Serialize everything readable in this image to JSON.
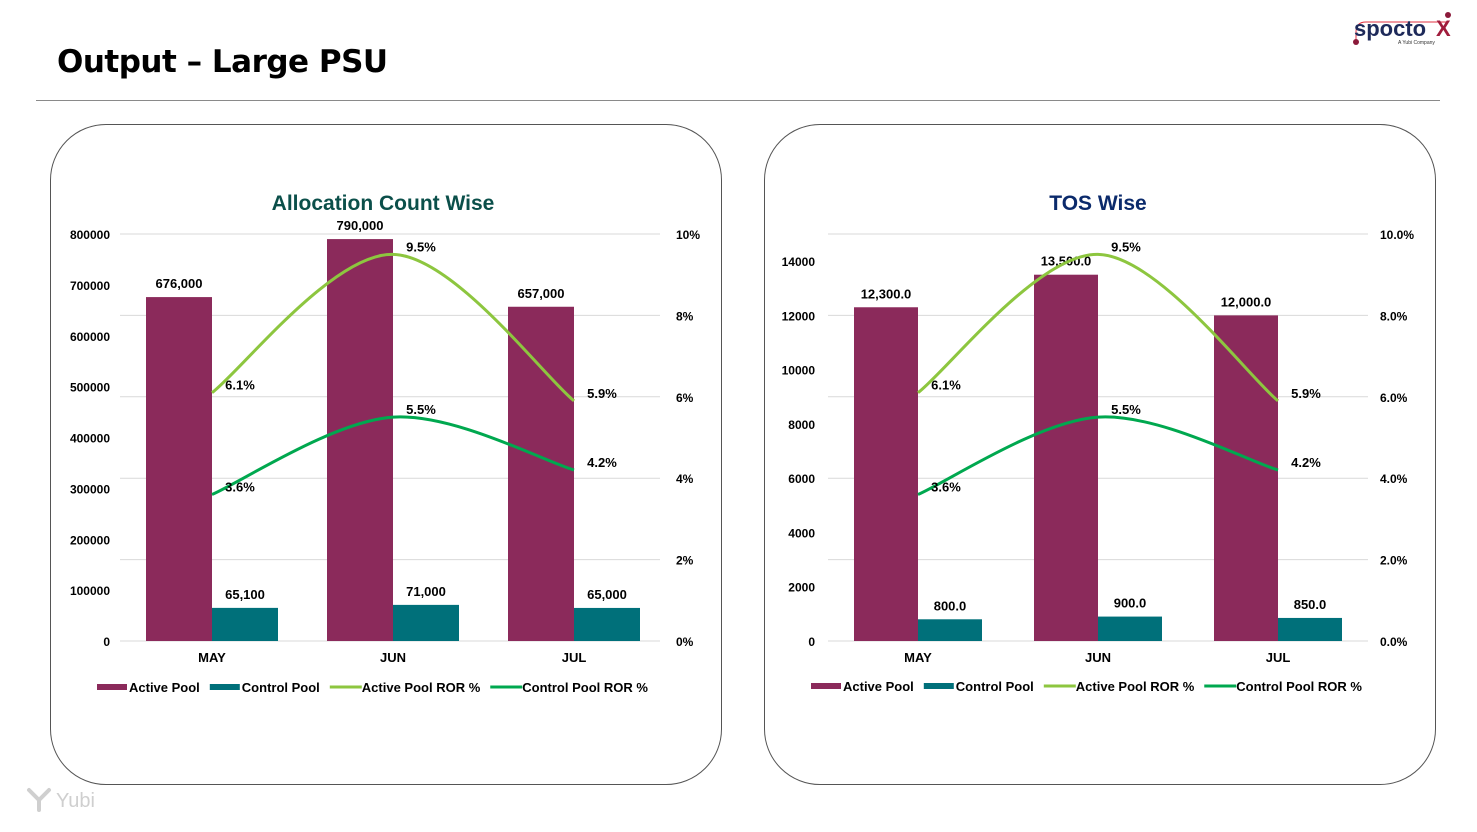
{
  "page": {
    "title": "Output –  Large PSU"
  },
  "logo": {
    "brand": "spocto",
    "brand_x": "X",
    "tagline": "A Yubi Company"
  },
  "footer_logo": {
    "text": "Yubi"
  },
  "colors": {
    "active_pool": "#8B2A5B",
    "control_pool": "#00707A",
    "active_ror": "#8DC63F",
    "control_ror": "#00A84F"
  },
  "chart_data": [
    {
      "type": "bar",
      "title": "Allocation Count Wise",
      "title_color": "#0B4F4A",
      "categories": [
        "MAY",
        "JUN",
        "JUL"
      ],
      "series": [
        {
          "name": "Active Pool",
          "kind": "bar",
          "axis": "left",
          "values": [
            676000,
            790000,
            657000
          ],
          "labels": [
            "676,000",
            "790,000",
            "657,000"
          ]
        },
        {
          "name": "Control Pool",
          "kind": "bar",
          "axis": "left",
          "values": [
            65100,
            71000,
            65000
          ],
          "labels": [
            "65,100",
            "71,000",
            "65,000"
          ]
        },
        {
          "name": "Active Pool ROR %",
          "kind": "line",
          "axis": "right",
          "values": [
            6.1,
            9.5,
            5.9
          ],
          "labels": [
            "6.1%",
            "9.5%",
            "5.9%"
          ]
        },
        {
          "name": "Control Pool ROR %",
          "kind": "line",
          "axis": "right",
          "values": [
            3.6,
            5.5,
            4.2
          ],
          "labels": [
            "3.6%",
            "5.5%",
            "4.2%"
          ]
        }
      ],
      "ylim_left": [
        0,
        800000
      ],
      "yticks_left": [
        "0",
        "100000",
        "200000",
        "300000",
        "400000",
        "500000",
        "600000",
        "700000",
        "800000"
      ],
      "ytick_values_left": [
        0,
        100000,
        200000,
        300000,
        400000,
        500000,
        600000,
        700000,
        800000
      ],
      "ylim_right": [
        0,
        10
      ],
      "yticks_right": [
        "0%",
        "2%",
        "4%",
        "6%",
        "8%",
        "10%"
      ],
      "ytick_values_right": [
        0,
        2,
        4,
        6,
        8,
        10
      ],
      "grid": true,
      "legend": "bottom"
    },
    {
      "type": "bar",
      "title": "TOS Wise",
      "title_color": "#0B2A6B",
      "categories": [
        "MAY",
        "JUN",
        "JUL"
      ],
      "series": [
        {
          "name": "Active Pool",
          "kind": "bar",
          "axis": "left",
          "values": [
            12300,
            13500,
            12000
          ],
          "labels": [
            "12,300.0",
            "13,500.0",
            "12,000.0"
          ]
        },
        {
          "name": "Control Pool",
          "kind": "bar",
          "axis": "left",
          "values": [
            800,
            900,
            850
          ],
          "labels": [
            "800.0",
            "900.0",
            "850.0"
          ]
        },
        {
          "name": "Active Pool ROR %",
          "kind": "line",
          "axis": "right",
          "values": [
            6.1,
            9.5,
            5.9
          ],
          "labels": [
            "6.1%",
            "9.5%",
            "5.9%"
          ]
        },
        {
          "name": "Control Pool ROR %",
          "kind": "line",
          "axis": "right",
          "values": [
            3.6,
            5.5,
            4.2
          ],
          "labels": [
            "3.6%",
            "5.5%",
            "4.2%"
          ]
        }
      ],
      "ylim_left": [
        0,
        15000
      ],
      "yticks_left": [
        "0",
        "2000",
        "4000",
        "6000",
        "8000",
        "10000",
        "12000",
        "14000"
      ],
      "ytick_values_left": [
        0,
        2000,
        4000,
        6000,
        8000,
        10000,
        12000,
        14000
      ],
      "ylim_right": [
        0,
        10
      ],
      "yticks_right": [
        "0.0%",
        "2.0%",
        "4.0%",
        "6.0%",
        "8.0%",
        "10.0%"
      ],
      "ytick_values_right": [
        0,
        2,
        4,
        6,
        8,
        10
      ],
      "grid": true,
      "legend": "bottom"
    }
  ]
}
